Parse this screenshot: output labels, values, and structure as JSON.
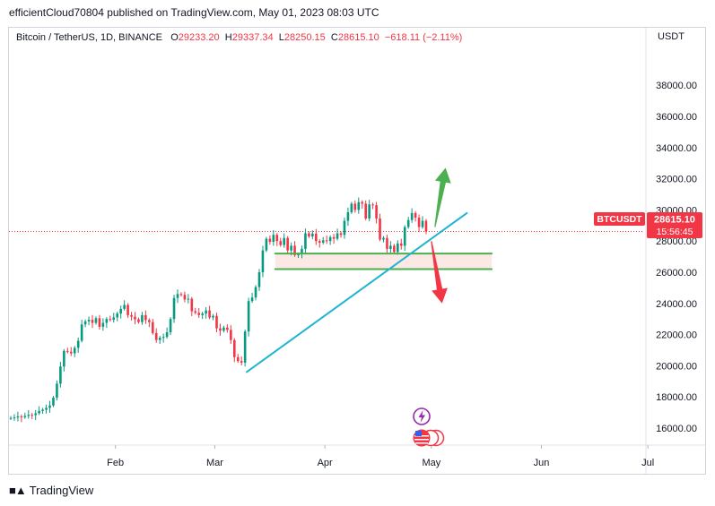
{
  "publisher_line": "efficientCloud70804 published on TradingView.com, May 01, 2023 08:03 UTC",
  "legend": {
    "symbol": "Bitcoin / TetherUS, 1D, BINANCE",
    "o_label": "O",
    "o": "29233.20",
    "h_label": "H",
    "h": "29337.34",
    "l_label": "L",
    "l": "28250.15",
    "c_label": "C",
    "c": "28615.10",
    "change": "−618.11 (−2.11%)"
  },
  "currency": "USDT",
  "price_tag": {
    "symbol": "BTCUSDT",
    "price": "28615.10",
    "countdown": "15:56:45"
  },
  "footer_brand": "TradingView",
  "colors": {
    "up": "#089981",
    "down": "#f23645",
    "trendline": "#1fb5d1",
    "support": "#4caf50",
    "arrow_up": "#4caf50",
    "arrow_down": "#f23645"
  },
  "chart_data": {
    "type": "candlestick",
    "ylim": [
      15000,
      39000
    ],
    "yticks": [
      "16000.00",
      "18000.00",
      "20000.00",
      "22000.00",
      "24000.00",
      "26000.00",
      "28000.00",
      "30000.00",
      "32000.00",
      "34000.00",
      "36000.00",
      "38000.00"
    ],
    "ytick_values": [
      16000,
      18000,
      20000,
      22000,
      24000,
      26000,
      28000,
      30000,
      32000,
      34000,
      36000,
      38000
    ],
    "xticks": [
      "Feb",
      "Mar",
      "Apr",
      "May",
      "Jun",
      "Jul"
    ],
    "xtick_dates": [
      "2023-02-01",
      "2023-03-01",
      "2023-04-01",
      "2023-05-01",
      "2023-06-01",
      "2023-07-01"
    ],
    "x_range": [
      "2023-01-01",
      "2023-07-01"
    ],
    "grid": false,
    "last_price": 28615.1,
    "candles_close": [
      16650,
      16680,
      16750,
      16700,
      16780,
      16850,
      16830,
      16950,
      17100,
      17180,
      17300,
      17450,
      17950,
      18850,
      19950,
      20950,
      20900,
      20800,
      21150,
      21600,
      22650,
      22850,
      22950,
      22750,
      23050,
      22500,
      22750,
      23000,
      22950,
      23100,
      23350,
      23650,
      23900,
      23250,
      23150,
      22980,
      22800,
      23250,
      22930,
      22800,
      22100,
      21650,
      21800,
      21850,
      22150,
      23000,
      24350,
      24600,
      24550,
      24250,
      24300,
      23500,
      23400,
      23250,
      23350,
      23550,
      23100,
      23200,
      22400,
      22250,
      22450,
      22300,
      21650,
      20550,
      20300,
      20200,
      22200,
      24150,
      24380,
      25050,
      26000,
      27400,
      28150,
      27950,
      28400,
      28000,
      27750,
      28200,
      27400,
      27700,
      27100,
      27150,
      27500,
      28500,
      28300,
      28480,
      28000,
      27900,
      28050,
      28000,
      28250,
      28150,
      28500,
      28400,
      29300,
      29850,
      30400,
      30000,
      30500,
      30400,
      29450,
      30350,
      30300,
      29450,
      28100,
      28200,
      27500,
      27700,
      27300,
      27850,
      27700,
      28900,
      29350,
      29800,
      29500,
      28900,
      29300,
      28615
    ],
    "candles_change_note": "",
    "annotations": {
      "trendline": {
        "from": [
          "2023-03-10",
          19600
        ],
        "to": [
          "2023-05-11",
          29800
        ]
      },
      "support_upper": {
        "from": [
          "2023-03-18",
          27200
        ],
        "to": [
          "2023-05-18",
          27200
        ]
      },
      "support_lower": {
        "from": [
          "2023-03-18",
          26200
        ],
        "to": [
          "2023-05-18",
          26200
        ]
      },
      "arrow_up": {
        "from": [
          "2023-05-02",
          28900
        ],
        "to": [
          "2023-05-05",
          32700
        ]
      },
      "arrow_down": {
        "from": [
          "2023-05-01",
          28000
        ],
        "to": [
          "2023-05-04",
          24000
        ]
      }
    }
  }
}
